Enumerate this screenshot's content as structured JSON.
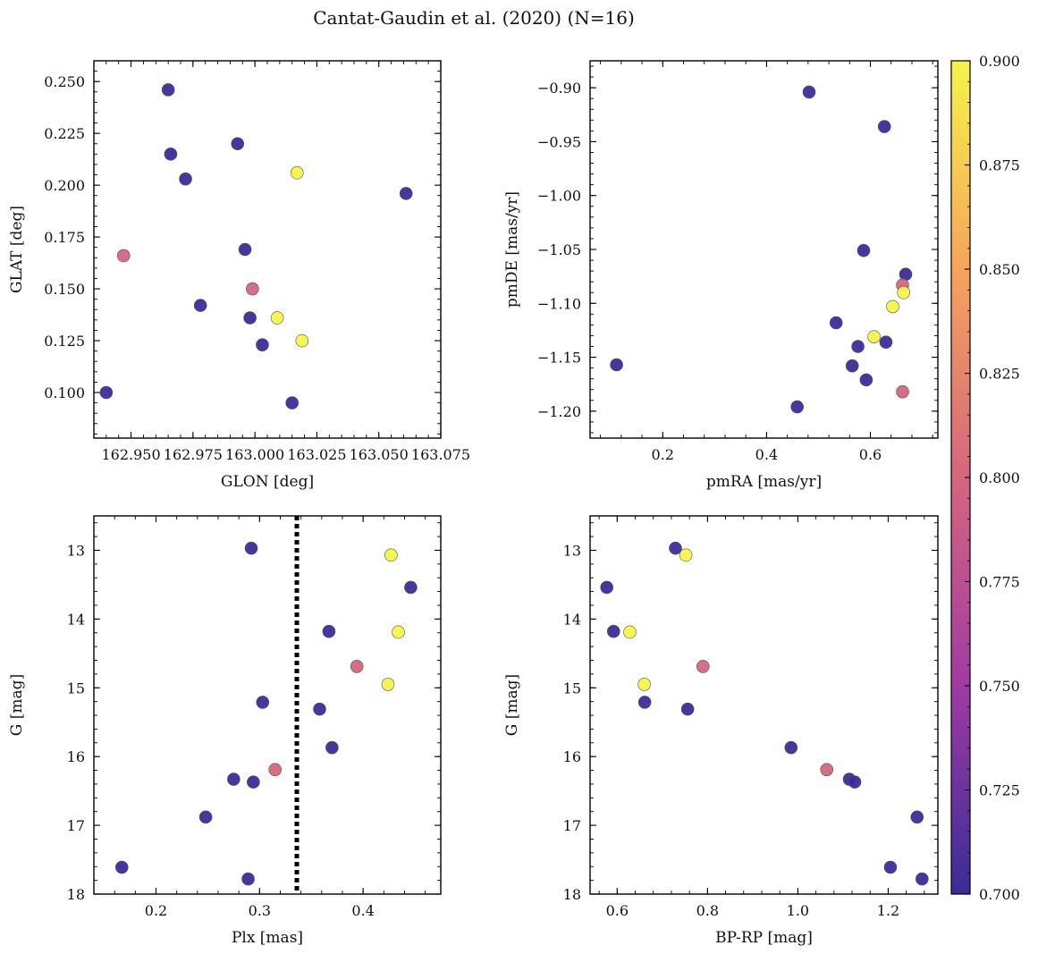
{
  "title": "Cantat-Gaudin et al. (2020) (N=16)",
  "colorbar": {
    "min": 0.7,
    "max": 0.9,
    "ticks": [
      "0.700",
      "0.725",
      "0.750",
      "0.775",
      "0.800",
      "0.825",
      "0.850",
      "0.875",
      "0.900"
    ],
    "colormap": "plasma",
    "colors": [
      "#3a2c98",
      "#a03aa3",
      "#d4667e",
      "#f7a35c",
      "#f4f44a"
    ]
  },
  "chart_data": [
    {
      "id": "glon-glat",
      "type": "scatter",
      "xlabel": "GLON [deg]",
      "ylabel": "GLAT [deg]",
      "xlim": [
        162.935,
        163.075
      ],
      "ylim": [
        0.078,
        0.26
      ],
      "xticks": [
        "162.950",
        "162.975",
        "163.000",
        "163.025",
        "163.050",
        "163.075"
      ],
      "yticks": [
        "0.100",
        "0.125",
        "0.150",
        "0.175",
        "0.200",
        "0.225",
        "0.250"
      ],
      "points": [
        {
          "x": 162.965,
          "y": 0.246,
          "c": 0.7
        },
        {
          "x": 162.966,
          "y": 0.215,
          "c": 0.7
        },
        {
          "x": 162.972,
          "y": 0.203,
          "c": 0.7
        },
        {
          "x": 162.993,
          "y": 0.22,
          "c": 0.7
        },
        {
          "x": 163.017,
          "y": 0.206,
          "c": 0.9
        },
        {
          "x": 163.061,
          "y": 0.196,
          "c": 0.7
        },
        {
          "x": 162.947,
          "y": 0.166,
          "c": 0.8
        },
        {
          "x": 162.996,
          "y": 0.169,
          "c": 0.7
        },
        {
          "x": 162.999,
          "y": 0.15,
          "c": 0.8
        },
        {
          "x": 162.978,
          "y": 0.142,
          "c": 0.7
        },
        {
          "x": 162.998,
          "y": 0.136,
          "c": 0.7
        },
        {
          "x": 163.009,
          "y": 0.136,
          "c": 0.9
        },
        {
          "x": 163.003,
          "y": 0.123,
          "c": 0.7
        },
        {
          "x": 163.019,
          "y": 0.125,
          "c": 0.9
        },
        {
          "x": 162.94,
          "y": 0.1,
          "c": 0.7
        },
        {
          "x": 163.015,
          "y": 0.095,
          "c": 0.7
        }
      ]
    },
    {
      "id": "pmra-pmde",
      "type": "scatter",
      "xlabel": "pmRA [mas/yr]",
      "ylabel": "pmDE [mas/yr]",
      "xlim": [
        0.06,
        0.73
      ],
      "ylim": [
        -1.225,
        -0.875
      ],
      "xticks": [
        "0.2",
        "0.4",
        "0.6"
      ],
      "yticks": [
        "−0.90",
        "−0.95",
        "−1.00",
        "−1.05",
        "−1.10",
        "−1.15",
        "−1.20"
      ],
      "points": [
        {
          "x": 0.482,
          "y": -0.904,
          "c": 0.7
        },
        {
          "x": 0.627,
          "y": -0.936,
          "c": 0.7
        },
        {
          "x": 0.587,
          "y": -1.051,
          "c": 0.7
        },
        {
          "x": 0.668,
          "y": -1.073,
          "c": 0.7
        },
        {
          "x": 0.662,
          "y": -1.083,
          "c": 0.8
        },
        {
          "x": 0.664,
          "y": -1.09,
          "c": 0.9
        },
        {
          "x": 0.643,
          "y": -1.103,
          "c": 0.9
        },
        {
          "x": 0.534,
          "y": -1.118,
          "c": 0.7
        },
        {
          "x": 0.607,
          "y": -1.131,
          "c": 0.9
        },
        {
          "x": 0.63,
          "y": -1.136,
          "c": 0.7
        },
        {
          "x": 0.576,
          "y": -1.14,
          "c": 0.7
        },
        {
          "x": 0.111,
          "y": -1.157,
          "c": 0.7
        },
        {
          "x": 0.565,
          "y": -1.158,
          "c": 0.7
        },
        {
          "x": 0.592,
          "y": -1.171,
          "c": 0.7
        },
        {
          "x": 0.662,
          "y": -1.182,
          "c": 0.8
        },
        {
          "x": 0.459,
          "y": -1.196,
          "c": 0.7
        }
      ]
    },
    {
      "id": "plx-g",
      "type": "scatter",
      "xlabel": "Plx [mas]",
      "ylabel": "G [mag]",
      "xlim": [
        0.14,
        0.475
      ],
      "ylim": [
        18.0,
        12.5
      ],
      "y_inverted": true,
      "xticks": [
        "0.2",
        "0.3",
        "0.4"
      ],
      "yticks": [
        "13",
        "14",
        "15",
        "16",
        "17",
        "18"
      ],
      "vline": {
        "x": 0.336,
        "style": "dotted"
      },
      "points": [
        {
          "x": 0.292,
          "y": 12.97,
          "c": 0.7
        },
        {
          "x": 0.427,
          "y": 13.07,
          "c": 0.9
        },
        {
          "x": 0.446,
          "y": 13.54,
          "c": 0.7
        },
        {
          "x": 0.367,
          "y": 14.18,
          "c": 0.7
        },
        {
          "x": 0.434,
          "y": 14.19,
          "c": 0.9
        },
        {
          "x": 0.394,
          "y": 14.69,
          "c": 0.8
        },
        {
          "x": 0.424,
          "y": 14.95,
          "c": 0.9
        },
        {
          "x": 0.303,
          "y": 15.21,
          "c": 0.7
        },
        {
          "x": 0.358,
          "y": 15.31,
          "c": 0.7
        },
        {
          "x": 0.37,
          "y": 15.87,
          "c": 0.7
        },
        {
          "x": 0.315,
          "y": 16.19,
          "c": 0.8
        },
        {
          "x": 0.275,
          "y": 16.33,
          "c": 0.7
        },
        {
          "x": 0.294,
          "y": 16.37,
          "c": 0.7
        },
        {
          "x": 0.248,
          "y": 16.88,
          "c": 0.7
        },
        {
          "x": 0.167,
          "y": 17.61,
          "c": 0.7
        },
        {
          "x": 0.289,
          "y": 17.78,
          "c": 0.7
        }
      ]
    },
    {
      "id": "bprp-g",
      "type": "scatter",
      "xlabel": "BP-RP [mag]",
      "ylabel": "G [mag]",
      "xlim": [
        0.54,
        1.31
      ],
      "ylim": [
        18.0,
        12.5
      ],
      "y_inverted": true,
      "xticks": [
        "0.6",
        "0.8",
        "1.0",
        "1.2"
      ],
      "yticks": [
        "13",
        "14",
        "15",
        "16",
        "17",
        "18"
      ],
      "points": [
        {
          "x": 0.729,
          "y": 12.97,
          "c": 0.7
        },
        {
          "x": 0.752,
          "y": 13.07,
          "c": 0.9
        },
        {
          "x": 0.577,
          "y": 13.54,
          "c": 0.7
        },
        {
          "x": 0.592,
          "y": 14.18,
          "c": 0.7
        },
        {
          "x": 0.628,
          "y": 14.19,
          "c": 0.9
        },
        {
          "x": 0.79,
          "y": 14.69,
          "c": 0.8
        },
        {
          "x": 0.66,
          "y": 14.95,
          "c": 0.9
        },
        {
          "x": 0.661,
          "y": 15.21,
          "c": 0.7
        },
        {
          "x": 0.756,
          "y": 15.31,
          "c": 0.7
        },
        {
          "x": 0.985,
          "y": 15.87,
          "c": 0.7
        },
        {
          "x": 1.064,
          "y": 16.19,
          "c": 0.8
        },
        {
          "x": 1.114,
          "y": 16.33,
          "c": 0.7
        },
        {
          "x": 1.126,
          "y": 16.37,
          "c": 0.7
        },
        {
          "x": 1.264,
          "y": 16.88,
          "c": 0.7
        },
        {
          "x": 1.205,
          "y": 17.61,
          "c": 0.7
        },
        {
          "x": 1.275,
          "y": 17.78,
          "c": 0.7
        }
      ]
    }
  ]
}
